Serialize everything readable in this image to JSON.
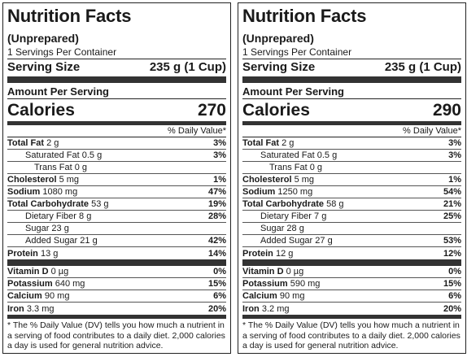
{
  "panels": [
    {
      "title": "Nutrition Facts",
      "status": "(Unprepared)",
      "servings": "1 Servings Per Container",
      "serving_size_label": "Serving Size",
      "serving_size_value": "235 g (1 Cup)",
      "amount_label": "Amount Per Serving",
      "calories_label": "Calories",
      "calories_value": "270",
      "dv_header": "% Daily Value*",
      "rows": [
        {
          "label": "Total Fat",
          "amount": "2 g",
          "pct": "3%"
        },
        {
          "label": "Saturated Fat",
          "amount": "0.5 g",
          "pct": "3%"
        },
        {
          "label": "Trans Fat",
          "amount": "0 g",
          "pct": ""
        },
        {
          "label": "Cholesterol",
          "amount": "5 mg",
          "pct": "1%"
        },
        {
          "label": "Sodium",
          "amount": "1080 mg",
          "pct": "47%"
        },
        {
          "label": "Total Carbohydrate",
          "amount": "53 g",
          "pct": "19%"
        },
        {
          "label": "Dietary Fiber",
          "amount": "8 g",
          "pct": "28%"
        },
        {
          "label": "Sugar",
          "amount": "23 g",
          "pct": ""
        },
        {
          "label": "Added Sugar",
          "amount": "21 g",
          "pct": "42%"
        },
        {
          "label": "Protein",
          "amount": "13 g",
          "pct": "14%"
        },
        {
          "label": "Vitamin D",
          "amount": "0 µg",
          "pct": "0%"
        },
        {
          "label": "Potassium",
          "amount": "640 mg",
          "pct": "15%"
        },
        {
          "label": "Calcium",
          "amount": "90 mg",
          "pct": "6%"
        },
        {
          "label": "Iron",
          "amount": "3.3 mg",
          "pct": "20%"
        }
      ],
      "footnote": "* The % Daily Value (DV) tells you how much a nutrient in a serving of food contributes to a daily diet. 2,000 calories a day is used for general nutrition advice."
    },
    {
      "title": "Nutrition Facts",
      "status": "(Unprepared)",
      "servings": "1 Servings Per Container",
      "serving_size_label": "Serving Size",
      "serving_size_value": "235 g (1 Cup)",
      "amount_label": "Amount Per Serving",
      "calories_label": "Calories",
      "calories_value": "290",
      "dv_header": "% Daily Value*",
      "rows": [
        {
          "label": "Total Fat",
          "amount": "2 g",
          "pct": "3%"
        },
        {
          "label": "Saturated Fat",
          "amount": "0.5 g",
          "pct": "3%"
        },
        {
          "label": "Trans Fat",
          "amount": "0 g",
          "pct": ""
        },
        {
          "label": "Cholesterol",
          "amount": "5 mg",
          "pct": "1%"
        },
        {
          "label": "Sodium",
          "amount": "1250 mg",
          "pct": "54%"
        },
        {
          "label": "Total Carbohydrate",
          "amount": "58 g",
          "pct": "21%"
        },
        {
          "label": "Dietary Fiber",
          "amount": "7 g",
          "pct": "25%"
        },
        {
          "label": "Sugar",
          "amount": "28 g",
          "pct": ""
        },
        {
          "label": "Added Sugar",
          "amount": "27 g",
          "pct": "53%"
        },
        {
          "label": "Protein",
          "amount": "12 g",
          "pct": "12%"
        },
        {
          "label": "Vitamin D",
          "amount": "0 µg",
          "pct": "0%"
        },
        {
          "label": "Potassium",
          "amount": "590 mg",
          "pct": "15%"
        },
        {
          "label": "Calcium",
          "amount": "90 mg",
          "pct": "6%"
        },
        {
          "label": "Iron",
          "amount": "3.2 mg",
          "pct": "20%"
        }
      ],
      "footnote": "* The % Daily Value (DV) tells you how much a nutrient in a serving of food contributes to a daily diet. 2,000 calories a day is used for general nutrition advice."
    }
  ]
}
